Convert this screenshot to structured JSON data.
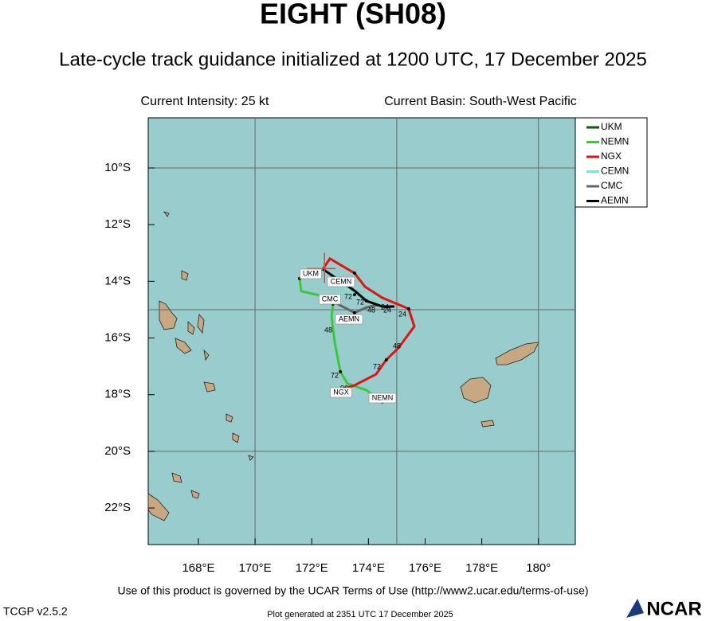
{
  "header": {
    "title": "EIGHT (SH08)",
    "subtitle": "Late-cycle track guidance initialized at 1200 UTC, 17 December 2025",
    "intensity": "Current Intensity: 25 kt",
    "basin": "Current Basin: South-West Pacific"
  },
  "map": {
    "lonlim": [
      166.23,
      181.3
    ],
    "latlim": [
      -23.29,
      -8.23
    ],
    "lonticks": [
      {
        "value": 168,
        "label": "168°E"
      },
      {
        "value": 170,
        "label": "170°E"
      },
      {
        "value": 172,
        "label": "172°E"
      },
      {
        "value": 174,
        "label": "174°E"
      },
      {
        "value": 176,
        "label": "176°E"
      },
      {
        "value": 178,
        "label": "178°E"
      },
      {
        "value": 180,
        "label": "180°"
      }
    ],
    "latticks": [
      {
        "value": -10,
        "label": "10°S"
      },
      {
        "value": -12,
        "label": "12°S"
      },
      {
        "value": -14,
        "label": "14°S"
      },
      {
        "value": -16,
        "label": "16°S"
      },
      {
        "value": -18,
        "label": "18°S"
      },
      {
        "value": -20,
        "label": "20°S"
      },
      {
        "value": -22,
        "label": "22°S"
      }
    ],
    "grid_lon": [
      170,
      175,
      180
    ],
    "grid_lat": [
      -10,
      -15,
      -20
    ],
    "current_position": {
      "lon": 172.45,
      "lat": -13.55
    },
    "tracks": [
      {
        "name": "UKM",
        "color": "#0a5a0a",
        "lon": [
          172.39,
          172.02
        ],
        "lat": [
          -13.57,
          -13.75
        ]
      },
      {
        "name": "NEMN",
        "color": "#3cc83c",
        "lon": [
          172.39,
          172.02,
          171.57,
          171.63,
          172.39,
          172.75,
          172.7,
          172.81,
          173.01,
          173.26,
          173.93,
          174.49
        ],
        "lat": [
          -13.57,
          -13.62,
          -13.9,
          -14.35,
          -14.52,
          -14.8,
          -15.25,
          -16.15,
          -17.19,
          -17.61,
          -17.84,
          -18.26
        ]
      },
      {
        "name": "NGX",
        "color": "#e01414",
        "lon": [
          172.39,
          172.64,
          173.51,
          173.88,
          174.49,
          175.42,
          175.62,
          175.06,
          174.63,
          174.27,
          173.51,
          173.15
        ],
        "lat": [
          -13.57,
          -13.2,
          -13.71,
          -14.19,
          -14.58,
          -14.97,
          -15.59,
          -16.35,
          -16.77,
          -17.28,
          -17.67,
          -17.78
        ]
      },
      {
        "name": "CEMN",
        "color": "#78e6c8",
        "lon": [
          172.39,
          173.09,
          173.51,
          174.21,
          174.44
        ],
        "lat": [
          -13.57,
          -14.19,
          -14.47,
          -14.52,
          -14.75
        ]
      },
      {
        "name": "CMC",
        "color": "#646464",
        "lon": [
          172.39,
          173.09,
          173.51,
          173.93,
          174.35
        ],
        "lat": [
          -14.52,
          -14.89,
          -15.11,
          -14.92,
          -14.83
        ]
      },
      {
        "name": "AEMN",
        "color": "#000000",
        "lon": [
          172.39,
          173.51,
          173.93,
          174.49,
          174.92
        ],
        "lat": [
          -13.57,
          -14.33,
          -14.69,
          -14.89,
          -14.89
        ]
      }
    ],
    "hour_labels": [
      "72",
      "24",
      "24",
      "48",
      "48",
      "72",
      "96",
      "72",
      "48",
      "24",
      "24",
      "72"
    ]
  },
  "footer": {
    "terms": "Use of this product is governed by the UCAR Terms of Use (http://www2.ucar.edu/terms-of-use)",
    "version": "TCGP v2.5.2",
    "generated": "Plot generated at 2351 UTC   17 December 2025",
    "logo": "NCAR"
  }
}
